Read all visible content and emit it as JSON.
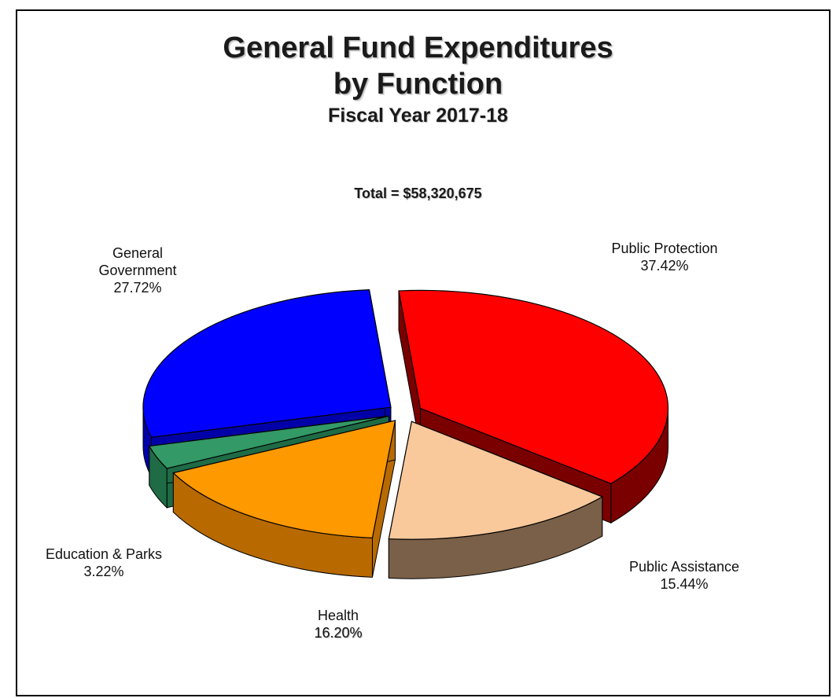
{
  "chart_data": {
    "type": "pie",
    "title_lines": [
      "General Fund Expenditures",
      "by Function"
    ],
    "subtitle": "Fiscal Year 2017-18",
    "annotation": "Total = $58,320,675",
    "label_lines": [
      [
        "Public Protection"
      ],
      [
        "Public Assistance"
      ],
      [
        "Health"
      ],
      [
        "Education & Parks"
      ],
      [
        "General",
        "Government"
      ]
    ],
    "slices": [
      {
        "label": "Public Protection",
        "value": 37.42,
        "display": "37.42%",
        "color": "#ff0000",
        "side_color": "#7a0000"
      },
      {
        "label": "Public Assistance",
        "value": 15.44,
        "display": "15.44%",
        "color": "#f9c89b",
        "side_color": "#7a6048"
      },
      {
        "label": "Health",
        "value": 16.2,
        "display": "16.20%",
        "color": "#ff9900",
        "side_color": "#b86a00"
      },
      {
        "label": "Education & Parks",
        "value": 3.22,
        "display": "3.22%",
        "color": "#339966",
        "side_color": "#1e6b45"
      },
      {
        "label": "General Government",
        "value": 27.72,
        "display": "27.72%",
        "color": "#0000ff",
        "side_color": "#0000a8"
      }
    ]
  }
}
